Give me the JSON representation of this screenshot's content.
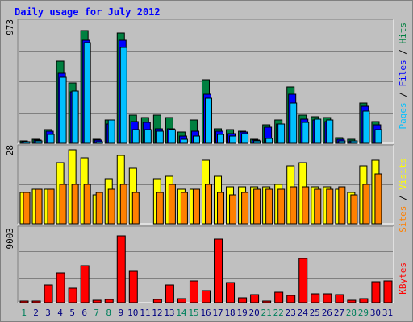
{
  "title": "Daily usage for July 2012",
  "colors": {
    "hits": "#008040",
    "files": "#0000ff",
    "pages": "#00c0ff",
    "visits": "#ffff00",
    "sites": "#ff8000",
    "kbytes": "#ff0000",
    "weekend_day": "#00805c",
    "weekday_day": "#000080"
  },
  "right_labels": {
    "top": [
      {
        "text": "Pages",
        "color": "#00c0ff"
      },
      {
        "text": " / ",
        "color": "#000000"
      },
      {
        "text": "Files",
        "color": "#0000ff"
      },
      {
        "text": " / ",
        "color": "#000000"
      },
      {
        "text": "Hits",
        "color": "#008040"
      }
    ],
    "middle": [
      {
        "text": "Sites",
        "color": "#ff8000"
      },
      {
        "text": " / ",
        "color": "#000000"
      },
      {
        "text": "Visits",
        "color": "#ffff00"
      }
    ],
    "bottom": [
      {
        "text": "KBytes",
        "color": "#ff0000"
      }
    ]
  },
  "chart_data": [
    {
      "type": "bar",
      "panel": "hits_files_pages",
      "ymax_label": "973",
      "ylim": [
        0,
        973
      ],
      "x": [
        "1",
        "2",
        "3",
        "4",
        "5",
        "6",
        "7",
        "8",
        "9",
        "10",
        "11",
        "12",
        "13",
        "14",
        "15",
        "16",
        "17",
        "18",
        "19",
        "20",
        "21",
        "22",
        "23",
        "24",
        "25",
        "26",
        "27",
        "28",
        "29",
        "30",
        "31"
      ],
      "weekend": [
        1,
        7,
        8,
        14,
        15,
        21,
        22,
        28,
        29
      ],
      "series": [
        {
          "name": "Hits",
          "values": [
            18,
            35,
            110,
            670,
            490,
            920,
            35,
            190,
            900,
            230,
            210,
            230,
            210,
            90,
            190,
            520,
            120,
            110,
            100,
            30,
            150,
            190,
            460,
            230,
            220,
            210,
            45,
            30,
            330,
            180,
            0
          ]
        },
        {
          "name": "Files",
          "values": [
            15,
            25,
            100,
            570,
            420,
            840,
            25,
            160,
            840,
            180,
            170,
            120,
            120,
            60,
            100,
            400,
            100,
            80,
            90,
            25,
            130,
            160,
            400,
            200,
            190,
            180,
            35,
            20,
            300,
            150,
            0
          ]
        },
        {
          "name": "Pages",
          "values": [
            10,
            20,
            70,
            540,
            430,
            820,
            15,
            190,
            780,
            110,
            110,
            100,
            110,
            30,
            60,
            370,
            70,
            60,
            80,
            20,
            40,
            160,
            330,
            170,
            200,
            190,
            20,
            20,
            260,
            110,
            0
          ]
        }
      ]
    },
    {
      "type": "bar",
      "panel": "visits_sites",
      "ymax_label": "28",
      "ylim": [
        0,
        28
      ],
      "x": [
        "1",
        "2",
        "3",
        "4",
        "5",
        "6",
        "7",
        "8",
        "9",
        "10",
        "11",
        "12",
        "13",
        "14",
        "15",
        "16",
        "17",
        "18",
        "19",
        "20",
        "21",
        "22",
        "23",
        "24",
        "25",
        "26",
        "27",
        "28",
        "29",
        "30",
        "31"
      ],
      "series": [
        {
          "name": "Visits",
          "values": [
            12,
            13,
            13,
            23,
            28,
            25,
            11,
            17,
            26,
            21,
            0,
            17,
            18,
            13,
            13,
            24,
            18,
            14,
            14,
            14,
            14,
            15,
            22,
            23,
            14,
            14,
            13,
            12,
            22,
            24,
            0
          ]
        },
        {
          "name": "Sites",
          "values": [
            12,
            13,
            13,
            15,
            15,
            15,
            12,
            13,
            15,
            12,
            0,
            12,
            15,
            12,
            13,
            15,
            12,
            11,
            12,
            13,
            13,
            13,
            14,
            14,
            13,
            13,
            14,
            11,
            15,
            19,
            0
          ]
        }
      ]
    },
    {
      "type": "bar",
      "panel": "kbytes",
      "ymax_label": "9003",
      "ylim": [
        0,
        9003
      ],
      "x": [
        "1",
        "2",
        "3",
        "4",
        "5",
        "6",
        "7",
        "8",
        "9",
        "10",
        "11",
        "12",
        "13",
        "14",
        "15",
        "16",
        "17",
        "18",
        "19",
        "20",
        "21",
        "22",
        "23",
        "24",
        "25",
        "26",
        "27",
        "28",
        "29",
        "30",
        "31"
      ],
      "series": [
        {
          "name": "KBytes",
          "values": [
            150,
            150,
            2200,
            3700,
            1800,
            4700,
            300,
            450,
            8400,
            3900,
            0,
            400,
            2200,
            500,
            2700,
            1500,
            8000,
            2500,
            600,
            1000,
            120,
            1300,
            900,
            5600,
            1100,
            1100,
            1000,
            350,
            550,
            2600,
            2700
          ]
        }
      ]
    }
  ]
}
